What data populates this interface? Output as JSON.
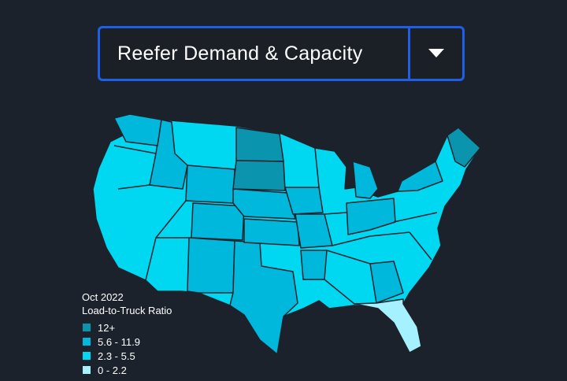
{
  "dropdown": {
    "label": "Reefer Demand & Capacity"
  },
  "legend": {
    "title": "Oct 2022",
    "subtitle": "Load-to-Truck Ratio",
    "items": [
      {
        "label": "12+",
        "color": "#0a94ad"
      },
      {
        "label": "5.6 - 11.9",
        "color": "#00b8dc"
      },
      {
        "label": "2.3 - 5.5",
        "color": "#00d8f2"
      },
      {
        "label": "0 - 2.2",
        "color": "#a6f1ff"
      }
    ]
  }
}
